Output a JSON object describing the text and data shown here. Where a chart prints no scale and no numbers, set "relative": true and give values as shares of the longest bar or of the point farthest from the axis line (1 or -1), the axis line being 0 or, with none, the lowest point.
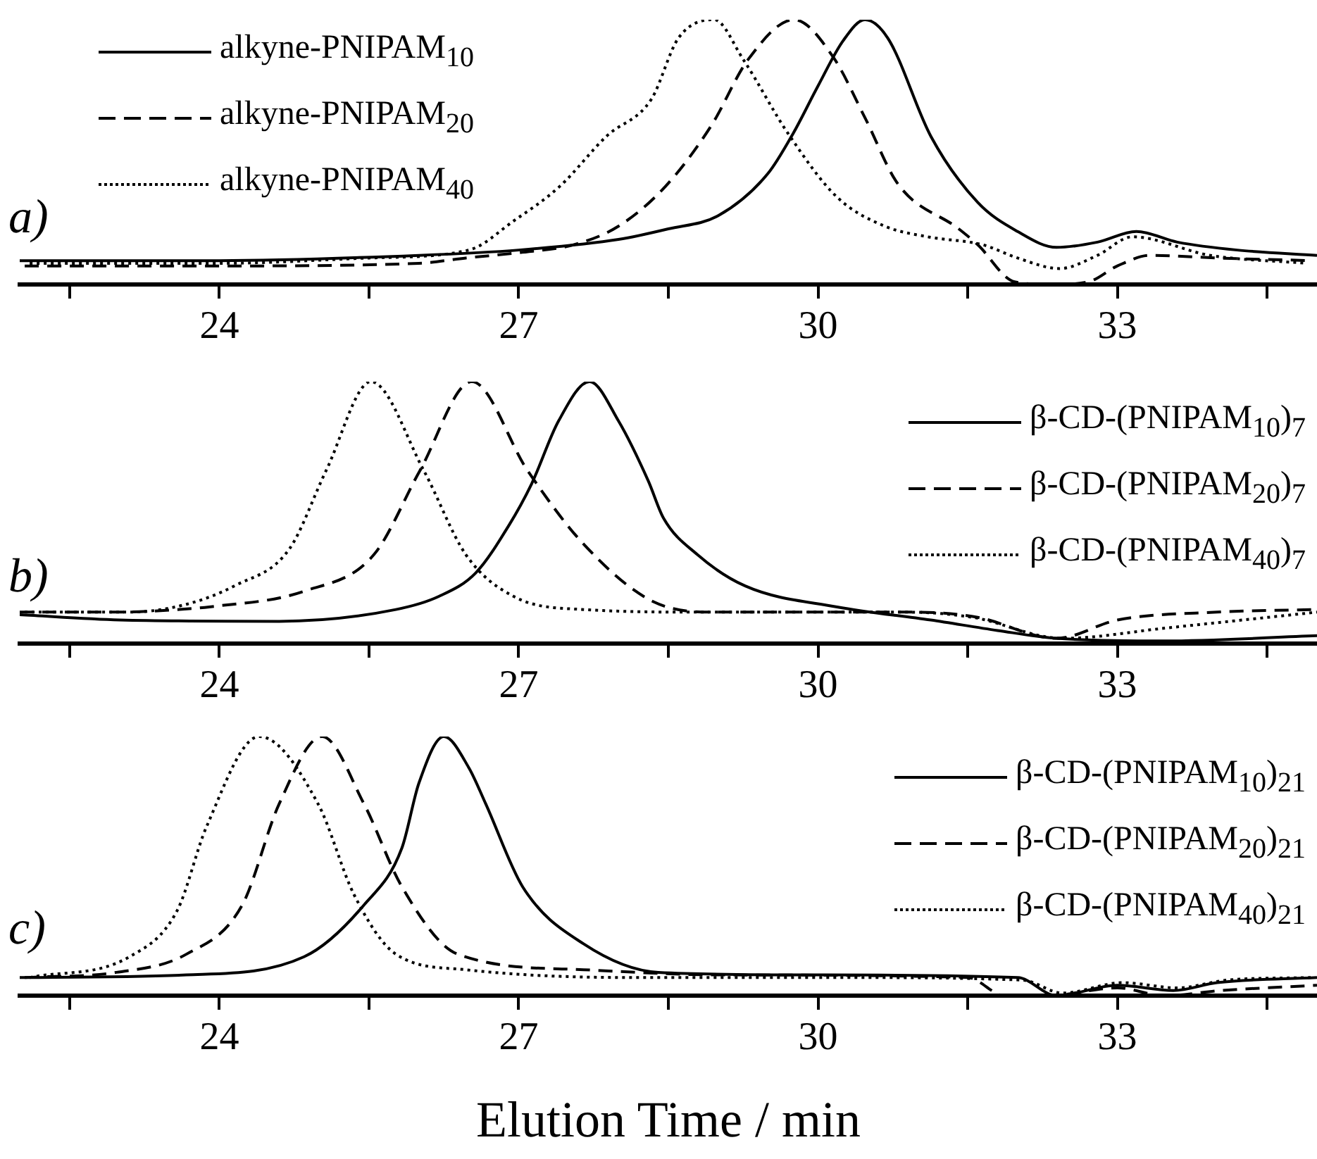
{
  "chart_data": [
    {
      "type": "line",
      "relative": true,
      "marker": "none",
      "legend": "top left",
      "tick_labels": "x",
      "annotations": [
        "a)"
      ],
      "xlim": [
        22,
        35
      ],
      "xticks": [
        {
          "value": 22.5,
          "label": null
        },
        24,
        {
          "value": 25.5,
          "label": null
        },
        27,
        {
          "value": 28.5,
          "label": null
        },
        30,
        {
          "value": 31.5,
          "label": null
        },
        33,
        {
          "value": 34.5,
          "label": null
        }
      ],
      "series": [
        {
          "name": "alkyne-PNIPAM$_{10}$",
          "color": "#000000",
          "line_style": "solid",
          "x": [
            22,
            24,
            26,
            27,
            28,
            28.5,
            29,
            29.5,
            29.75,
            30,
            30.25,
            30.47,
            30.7,
            31.13,
            31.6,
            32,
            32.39,
            32.8,
            33.19,
            33.6,
            34.2,
            35
          ],
          "values": [
            0.09,
            0.09,
            0.11,
            0.13,
            0.17,
            0.21,
            0.26,
            0.42,
            0.57,
            0.75,
            0.92,
            1,
            0.93,
            0.56,
            0.31,
            0.2,
            0.14,
            0.16,
            0.2,
            0.16,
            0.13,
            0.11
          ]
        },
        {
          "name": "alkyne-PNIPAM$_{20}$",
          "color": "#000000",
          "line_style": "dashed",
          "x": [
            22.05,
            24,
            26,
            26.47,
            27,
            27.55,
            28,
            28.47,
            28.93,
            29.3,
            29.76,
            30.15,
            30.47,
            30.8,
            31.41,
            31.6,
            31.97,
            32.35,
            32.71,
            33.0,
            33.33,
            34,
            34.95
          ],
          "values": [
            0.07,
            0.07,
            0.08,
            0.1,
            0.12,
            0.15,
            0.22,
            0.37,
            0.6,
            0.85,
            1,
            0.86,
            0.63,
            0.38,
            0.21,
            0.15,
            0.01,
            0,
            0.01,
            0.07,
            0.11,
            0.1,
            0.09
          ]
        },
        {
          "name": "alkyne-PNIPAM$_{40}$",
          "color": "#000000",
          "line_style": "dotted",
          "x": [
            22.1,
            24,
            25.5,
            26.5,
            26.95,
            27.41,
            27.88,
            28.33,
            28.6,
            28.96,
            29.25,
            29.7,
            30.19,
            30.67,
            31.1,
            31.65,
            32.0,
            32.42,
            32.8,
            33.15,
            33.93,
            34.9
          ],
          "values": [
            0.08,
            0.08,
            0.1,
            0.13,
            0.24,
            0.37,
            0.56,
            0.7,
            0.93,
            1,
            0.85,
            0.57,
            0.33,
            0.22,
            0.18,
            0.15,
            0.1,
            0.06,
            0.11,
            0.18,
            0.11,
            0.08
          ]
        }
      ]
    },
    {
      "type": "line",
      "relative": true,
      "marker": "none",
      "legend": "top right",
      "tick_labels": "x",
      "annotations": [
        "b)"
      ],
      "xlim": [
        22,
        35
      ],
      "xticks": [
        {
          "value": 22.5,
          "label": null
        },
        24,
        {
          "value": 25.5,
          "label": null
        },
        27,
        {
          "value": 28.5,
          "label": null
        },
        30,
        {
          "value": 31.5,
          "label": null
        },
        33,
        {
          "value": 34.5,
          "label": null
        }
      ],
      "series": [
        {
          "name": "β-CD-(PNIPAM$_{10}$)$_{7}$",
          "color": "#000000",
          "line_style": "solid",
          "x": [
            22,
            23,
            24.6,
            25.77,
            26.2,
            26.57,
            26.9,
            27.13,
            27.4,
            27.71,
            28.0,
            28.3,
            28.45,
            28.79,
            29.27,
            30.19,
            31.13,
            31.8,
            32.39,
            33.47,
            35
          ],
          "values": [
            0.11,
            0.09,
            0.085,
            0.13,
            0.18,
            0.27,
            0.45,
            0.61,
            0.85,
            1,
            0.85,
            0.62,
            0.48,
            0.34,
            0.22,
            0.14,
            0.09,
            0.05,
            0.02,
            0.01,
            0.03
          ]
        },
        {
          "name": "β-CD-(PNIPAM$_{20}$)$_{7}$",
          "color": "#000000",
          "line_style": "dashed",
          "x": [
            22,
            23,
            23.58,
            23.9,
            24.85,
            25.55,
            26.01,
            26.53,
            27.09,
            27.65,
            28.35,
            29,
            30,
            31,
            31.6,
            32.39,
            33,
            34,
            35
          ],
          "values": [
            0.12,
            0.12,
            0.13,
            0.14,
            0.2,
            0.34,
            0.66,
            1,
            0.66,
            0.38,
            0.16,
            0.12,
            0.12,
            0.12,
            0.1,
            0.02,
            0.09,
            0.12,
            0.13
          ]
        },
        {
          "name": "β-CD-(PNIPAM$_{40}$)$_{7}$",
          "color": "#000000",
          "line_style": "dotted",
          "x": [
            22.05,
            23.1,
            23.67,
            24.15,
            24.7,
            25.07,
            25.52,
            26.05,
            26.47,
            26.95,
            27.65,
            28.9,
            30.9,
            31.55,
            32.45,
            33.5,
            35
          ],
          "values": [
            0.12,
            0.12,
            0.15,
            0.22,
            0.36,
            0.66,
            1,
            0.66,
            0.34,
            0.18,
            0.13,
            0.12,
            0.12,
            0.1,
            0.02,
            0.06,
            0.12
          ]
        }
      ]
    },
    {
      "type": "line",
      "relative": true,
      "marker": "none",
      "legend": "top right",
      "tick_labels": "x",
      "xlabel": "Elution Time / min",
      "annotations": [
        "c)"
      ],
      "xlim": [
        22,
        35
      ],
      "xticks": [
        {
          "value": 22.5,
          "label": null
        },
        24,
        {
          "value": 25.5,
          "label": null
        },
        27,
        {
          "value": 28.5,
          "label": null
        },
        30,
        {
          "value": 31.5,
          "label": null
        },
        33,
        {
          "value": 34.5,
          "label": null
        }
      ],
      "series": [
        {
          "name": "β-CD-(PNIPAM$_{10}$)$_{21}$",
          "color": "#000000",
          "line_style": "solid",
          "x": [
            22,
            23.67,
            24.85,
            25.45,
            25.83,
            26.0,
            26.25,
            26.5,
            26.67,
            27.04,
            27.65,
            28.4,
            30,
            32,
            32.39,
            33,
            33.56,
            34,
            35
          ],
          "values": [
            0.07,
            0.08,
            0.15,
            0.35,
            0.57,
            0.82,
            1,
            0.88,
            0.74,
            0.42,
            0.2,
            0.09,
            0.08,
            0.07,
            0,
            0.04,
            0.02,
            0.05,
            0.07
          ]
        },
        {
          "name": "β-CD-(PNIPAM$_{20}$)$_{21}$",
          "color": "#000000",
          "line_style": "dashed",
          "x": [
            22.05,
            22.97,
            23.67,
            24.23,
            24.6,
            25.03,
            25.45,
            25.83,
            26.39,
            27.65,
            29,
            31.5,
            31.87,
            32.3,
            33,
            33.47,
            34.05,
            35
          ],
          "values": [
            0.07,
            0.09,
            0.16,
            0.35,
            0.74,
            1,
            0.74,
            0.42,
            0.16,
            0.1,
            0.08,
            0.07,
            0,
            0,
            0.03,
            0,
            0.02,
            0.04
          ]
        },
        {
          "name": "β-CD-(PNIPAM$_{40}$)$_{21}$",
          "color": "#000000",
          "line_style": "dotted",
          "x": [
            22.1,
            23.1,
            23.58,
            23.87,
            24.4,
            24.99,
            25.35,
            25.77,
            26.47,
            28.1,
            30.1,
            32.05,
            32.45,
            33.05,
            33.6,
            34.1,
            34.95
          ],
          "values": [
            0.07,
            0.15,
            0.33,
            0.65,
            1,
            0.74,
            0.39,
            0.16,
            0.1,
            0.07,
            0.07,
            0.06,
            0.01,
            0.05,
            0.03,
            0.06,
            0.07
          ]
        }
      ]
    }
  ]
}
